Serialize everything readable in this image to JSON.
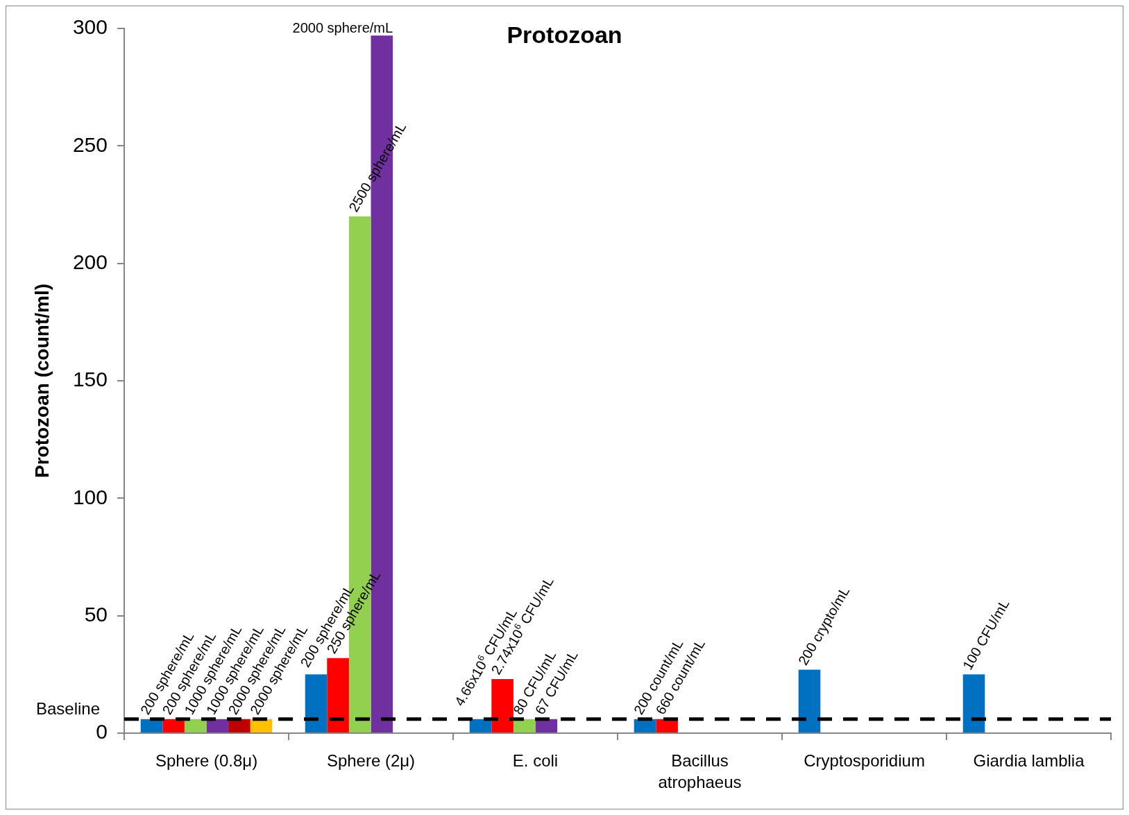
{
  "chart_data": {
    "type": "bar",
    "title": "Protozoan",
    "ylabel": "Protozoan (count/ml)",
    "categories": [
      "Sphere (0.8μ)",
      "Sphere (2μ)",
      "E. coli",
      "Bacillus atrophaeus",
      "Cryptosporidium",
      "Giardia lamblia"
    ],
    "series": [
      {
        "color": "#0070c0",
        "values": [
          6,
          25,
          6,
          6,
          27,
          25
        ]
      },
      {
        "color": "#ff0000",
        "values": [
          6,
          32,
          23,
          6,
          null,
          null
        ]
      },
      {
        "color": "#92d050",
        "values": [
          6,
          220,
          6,
          null,
          null,
          null
        ]
      },
      {
        "color": "#7030a0",
        "values": [
          6,
          297,
          6,
          null,
          null,
          null
        ]
      },
      {
        "color": "#c00000",
        "values": [
          6,
          null,
          null,
          null,
          null,
          null
        ]
      },
      {
        "color": "#ffc000",
        "values": [
          6,
          null,
          null,
          null,
          null,
          null
        ]
      }
    ],
    "ylim": [
      0,
      300
    ],
    "yticks": [
      0,
      50,
      100,
      150,
      200,
      250,
      300
    ],
    "ref_lines": [
      {
        "axis": "y",
        "value": 6,
        "label": "Baseline",
        "color": "#000000",
        "line_style": "dashed"
      }
    ],
    "annotations": [
      "200 sphere/mL",
      "200 sphere/mL",
      "1000 sphere/mL",
      "1000 sphere/mL",
      "2000 sphere/mL",
      "2000 sphere/mL",
      "200 sphere/mL",
      "250 sphere/mL",
      "2500 sphere/mL",
      "2000 sphere/mL",
      "4.66x10$^{6}$ CFU/mL",
      "2.74x10$^{6}$ CFU/mL",
      "80 CFU/mL",
      "67 CFU/mL",
      "200 count/mL",
      "660 count/mL",
      "200 crypto/mL",
      "100 CFU/mL"
    ]
  }
}
